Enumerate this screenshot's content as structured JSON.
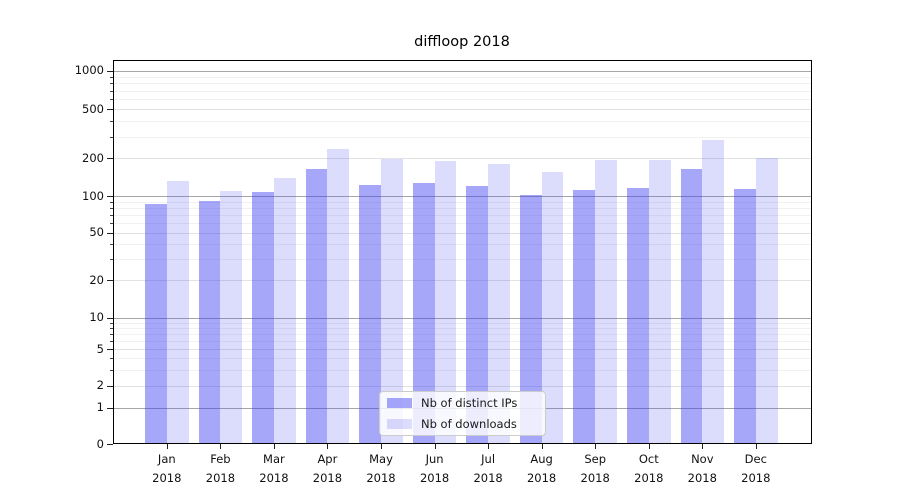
{
  "chart_data": {
    "type": "bar",
    "title": "diffloop 2018",
    "categories": [
      "Jan",
      "Feb",
      "Mar",
      "Apr",
      "May",
      "Jun",
      "Jul",
      "Aug",
      "Sep",
      "Oct",
      "Nov",
      "Dec"
    ],
    "x_tick_line2": "2018",
    "series": [
      {
        "name": "Nb of distinct IPs",
        "color": "rgba(60,60,245,0.45)",
        "values": [
          86,
          91,
          107,
          163,
          122,
          128,
          120,
          102,
          112,
          116,
          164,
          114
        ]
      },
      {
        "name": "Nb of downloads",
        "color": "rgba(60,60,245,0.18)",
        "values": [
          132,
          110,
          140,
          240,
          197,
          190,
          181,
          157,
          195,
          193,
          280,
          202
        ]
      }
    ],
    "yscale": "symlog",
    "y_ticks": [
      0,
      1,
      2,
      5,
      10,
      20,
      50,
      100,
      200,
      500,
      1000
    ],
    "y_tick_labels": [
      "0",
      "1",
      "2",
      "5",
      "10",
      "20",
      "50",
      "100",
      "200",
      "500",
      "1000"
    ],
    "ylim": [
      0,
      1400
    ],
    "grid": true,
    "legend_position": "lower center"
  },
  "colors": {
    "grid_major": "#a6a6a6",
    "grid_mid": "#e2e2e2",
    "grid_minor": "#f1f1f1",
    "spine": "#000000",
    "text": "#111111"
  }
}
